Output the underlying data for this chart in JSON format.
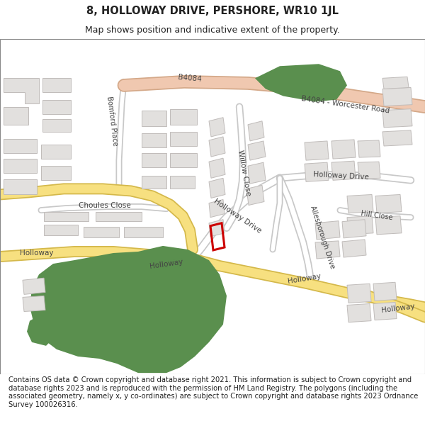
{
  "title": "8, HOLLOWAY DRIVE, PERSHORE, WR10 1JL",
  "subtitle": "Map shows position and indicative extent of the property.",
  "footer": "Contains OS data © Crown copyright and database right 2021. This information is subject to Crown copyright and database rights 2023 and is reproduced with the permission of HM Land Registry. The polygons (including the associated geometry, namely x, y co-ordinates) are subject to Crown copyright and database rights 2023 Ordnance Survey 100026316.",
  "bg_color": "#ffffff",
  "map_bg": "#f5f3f0",
  "road_yellow_color": "#f7e080",
  "road_yellow_border": "#d4b84a",
  "road_pink_color": "#f0c8b0",
  "road_pink_border": "#d4a888",
  "road_white_color": "#ffffff",
  "road_white_border": "#c8c8c8",
  "building_color": "#e2e0de",
  "building_border": "#c0bcba",
  "green_color": "#5a8f4e",
  "plot_color": "#cc0000",
  "text_color": "#222222",
  "label_color": "#444444",
  "title_fontsize": 10.5,
  "subtitle_fontsize": 9,
  "footer_fontsize": 7.2
}
